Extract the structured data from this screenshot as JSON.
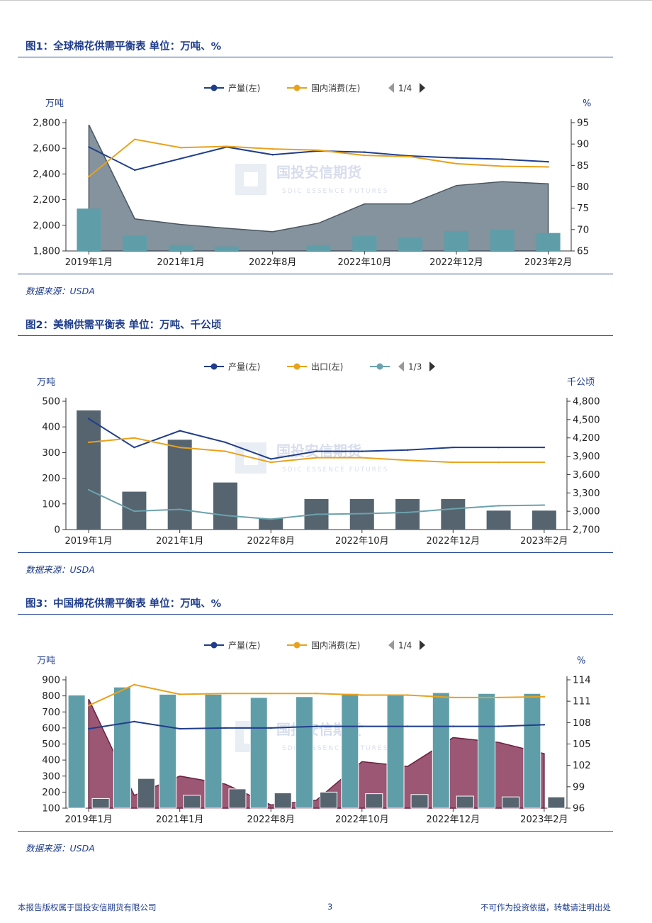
{
  "figures": [
    {
      "title": "图1：全球棉花供需平衡表 单位：万吨、%",
      "source": "数据来源：USDA",
      "watermark": {
        "cn": "国投安信期货",
        "en": "SDIC ESSENCE FUTURES"
      },
      "legend": {
        "items": [
          {
            "label": "产量(左)",
            "color": "#1f3d8c"
          },
          {
            "label": "国内消费(左)",
            "color": "#e8a21c"
          }
        ],
        "pager": "1/4"
      },
      "chart_data": {
        "type": "line",
        "left_unit": "万吨",
        "right_unit": "%",
        "left_range": [
          1800,
          2800
        ],
        "left_ticks": [
          "1,800",
          "2,000",
          "2,200",
          "2,400",
          "2,600",
          "2,800"
        ],
        "right_range": [
          65,
          95
        ],
        "right_ticks": [
          "65",
          "70",
          "75",
          "80",
          "85",
          "90",
          "95"
        ],
        "x_tick_labels": [
          "2019年1月",
          "2021年1月",
          "2022年8月",
          "2022年10月",
          "2022年12月",
          "2023年2月"
        ],
        "x_tick_index": [
          0,
          2,
          4,
          6,
          8,
          10
        ],
        "n_points": 11,
        "series": [
          {
            "name": "产量(左)",
            "axis": "left",
            "kind": "line",
            "color": "#1f3d8c",
            "values": [
              2610,
              2430,
              2520,
              2610,
              2550,
              2580,
              2570,
              2540,
              2525,
              2515,
              2495
            ]
          },
          {
            "name": "国内消费(左)",
            "axis": "left",
            "kind": "line",
            "color": "#e8a21c",
            "values": [
              2380,
              2670,
              2605,
              2615,
              2595,
              2585,
              2545,
              2535,
              2480,
              2460,
              2455
            ]
          },
          {
            "name": "",
            "axis": "right",
            "kind": "area",
            "color": "#6e808d",
            "values": [
              94.5,
              72.5,
              71.2,
              70.3,
              69.5,
              71.5,
              76,
              76,
              80.3,
              81.2,
              80.7
            ]
          },
          {
            "name": "",
            "axis": "left",
            "kind": "bar",
            "color": "#5f9ea9",
            "values": [
              2130,
              1920,
              1845,
              1835,
              1800,
              1845,
              1915,
              1905,
              1955,
              1965,
              1940
            ]
          }
        ]
      }
    },
    {
      "title": "图2：美棉供需平衡表 单位：万吨、千公顷",
      "source": "数据来源：USDA",
      "watermark": {
        "cn": "国投安信期货",
        "en": "SDIC ESSENCE FUTURES"
      },
      "legend": {
        "items": [
          {
            "label": "产量(左)",
            "color": "#1f3d8c"
          },
          {
            "label": "出口(左)",
            "color": "#e8a21c"
          },
          {
            "label": "",
            "color": "#6aa2ad"
          }
        ],
        "pager": "1/3"
      },
      "chart_data": {
        "type": "line",
        "left_unit": "万吨",
        "right_unit": "千公顷",
        "left_range": [
          0,
          500
        ],
        "left_ticks": [
          "0",
          "100",
          "200",
          "300",
          "400",
          "500"
        ],
        "right_range": [
          2700,
          4800
        ],
        "right_ticks": [
          "2,700",
          "3,000",
          "3,300",
          "3,600",
          "3,900",
          "4,200",
          "4,500",
          "4,800"
        ],
        "x_tick_labels": [
          "2019年1月",
          "2021年1月",
          "2022年8月",
          "2022年10月",
          "2022年12月",
          "2023年2月"
        ],
        "x_tick_index": [
          0,
          2,
          4,
          6,
          8,
          10
        ],
        "n_points": 11,
        "series": [
          {
            "name": "",
            "axis": "right",
            "kind": "bar",
            "color": "#566470",
            "values": [
              4650,
              3320,
              4170,
              3470,
              2880,
              3200,
              3200,
              3200,
              3200,
              3010,
              3010
            ]
          },
          {
            "name": "产量(左)",
            "axis": "left",
            "kind": "line",
            "color": "#1f3d8c",
            "values": [
              432,
              320,
              385,
              340,
              275,
              305,
              305,
              310,
              320,
              320,
              320
            ]
          },
          {
            "name": "出口(左)",
            "axis": "left",
            "kind": "line",
            "color": "#e8a21c",
            "values": [
              340,
              357,
              320,
              305,
              262,
              280,
              280,
              270,
              262,
              262,
              262
            ]
          },
          {
            "name": "",
            "axis": "right",
            "kind": "line",
            "color": "#6aa2ad",
            "values": [
              3350,
              3000,
              3030,
              2930,
              2870,
              2950,
              2960,
              2980,
              3040,
              3090,
              3100
            ]
          }
        ]
      }
    },
    {
      "title": "图3：中国棉花供需平衡表 单位：万吨、%",
      "source": "数据来源：USDA",
      "watermark": {
        "cn": "国投安信期货",
        "en": "SDIC ESSENCE FUTURES"
      },
      "legend": {
        "items": [
          {
            "label": "产量(左)",
            "color": "#1f3d8c"
          },
          {
            "label": "国内消费(左)",
            "color": "#e8a21c"
          }
        ],
        "pager": "1/4"
      },
      "chart_data": {
        "type": "line",
        "left_unit": "万吨",
        "right_unit": "%",
        "left_range": [
          100,
          900
        ],
        "left_ticks": [
          "100",
          "200",
          "300",
          "400",
          "500",
          "600",
          "700",
          "800",
          "900"
        ],
        "right_range": [
          96,
          114
        ],
        "right_ticks": [
          "96",
          "99",
          "102",
          "105",
          "108",
          "111",
          "114"
        ],
        "x_tick_labels": [
          "2019年1月",
          "2021年1月",
          "2022年8月",
          "2022年10月",
          "2022年12月",
          "2023年2月"
        ],
        "x_tick_index": [
          0,
          2,
          4,
          6,
          8,
          10
        ],
        "n_points": 11,
        "series": [
          {
            "name": "",
            "axis": "left",
            "kind": "area",
            "color": "#8b3a5c",
            "values": [
              780,
              180,
              300,
              250,
              120,
              150,
              390,
              360,
              540,
              510,
              440
            ]
          },
          {
            "name": "",
            "axis": "left",
            "kind": "bar",
            "color": "#5f9ea9",
            "values": [
              805,
              855,
              810,
              810,
              790,
              795,
              815,
              810,
              820,
              815,
              815
            ]
          },
          {
            "name": "",
            "axis": "left",
            "kind": "bar",
            "color": "#566470",
            "values": [
              160,
              285,
              180,
              220,
              195,
              200,
              190,
              185,
              175,
              170,
              170
            ]
          },
          {
            "name": "产量(左)",
            "axis": "left",
            "kind": "line",
            "color": "#1f3d8c",
            "values": [
              595,
              640,
              595,
              600,
              600,
              610,
              610,
              610,
              610,
              610,
              620
            ]
          },
          {
            "name": "国内消费(左)",
            "axis": "left",
            "kind": "line",
            "color": "#e8a21c",
            "values": [
              740,
              870,
              810,
              815,
              815,
              815,
              805,
              805,
              790,
              790,
              795
            ]
          }
        ]
      }
    }
  ],
  "footer": {
    "left": "本报告版权属于国投安信期货有限公司",
    "page": "3",
    "right": "不可作为投资依据，转载请注明出处"
  }
}
